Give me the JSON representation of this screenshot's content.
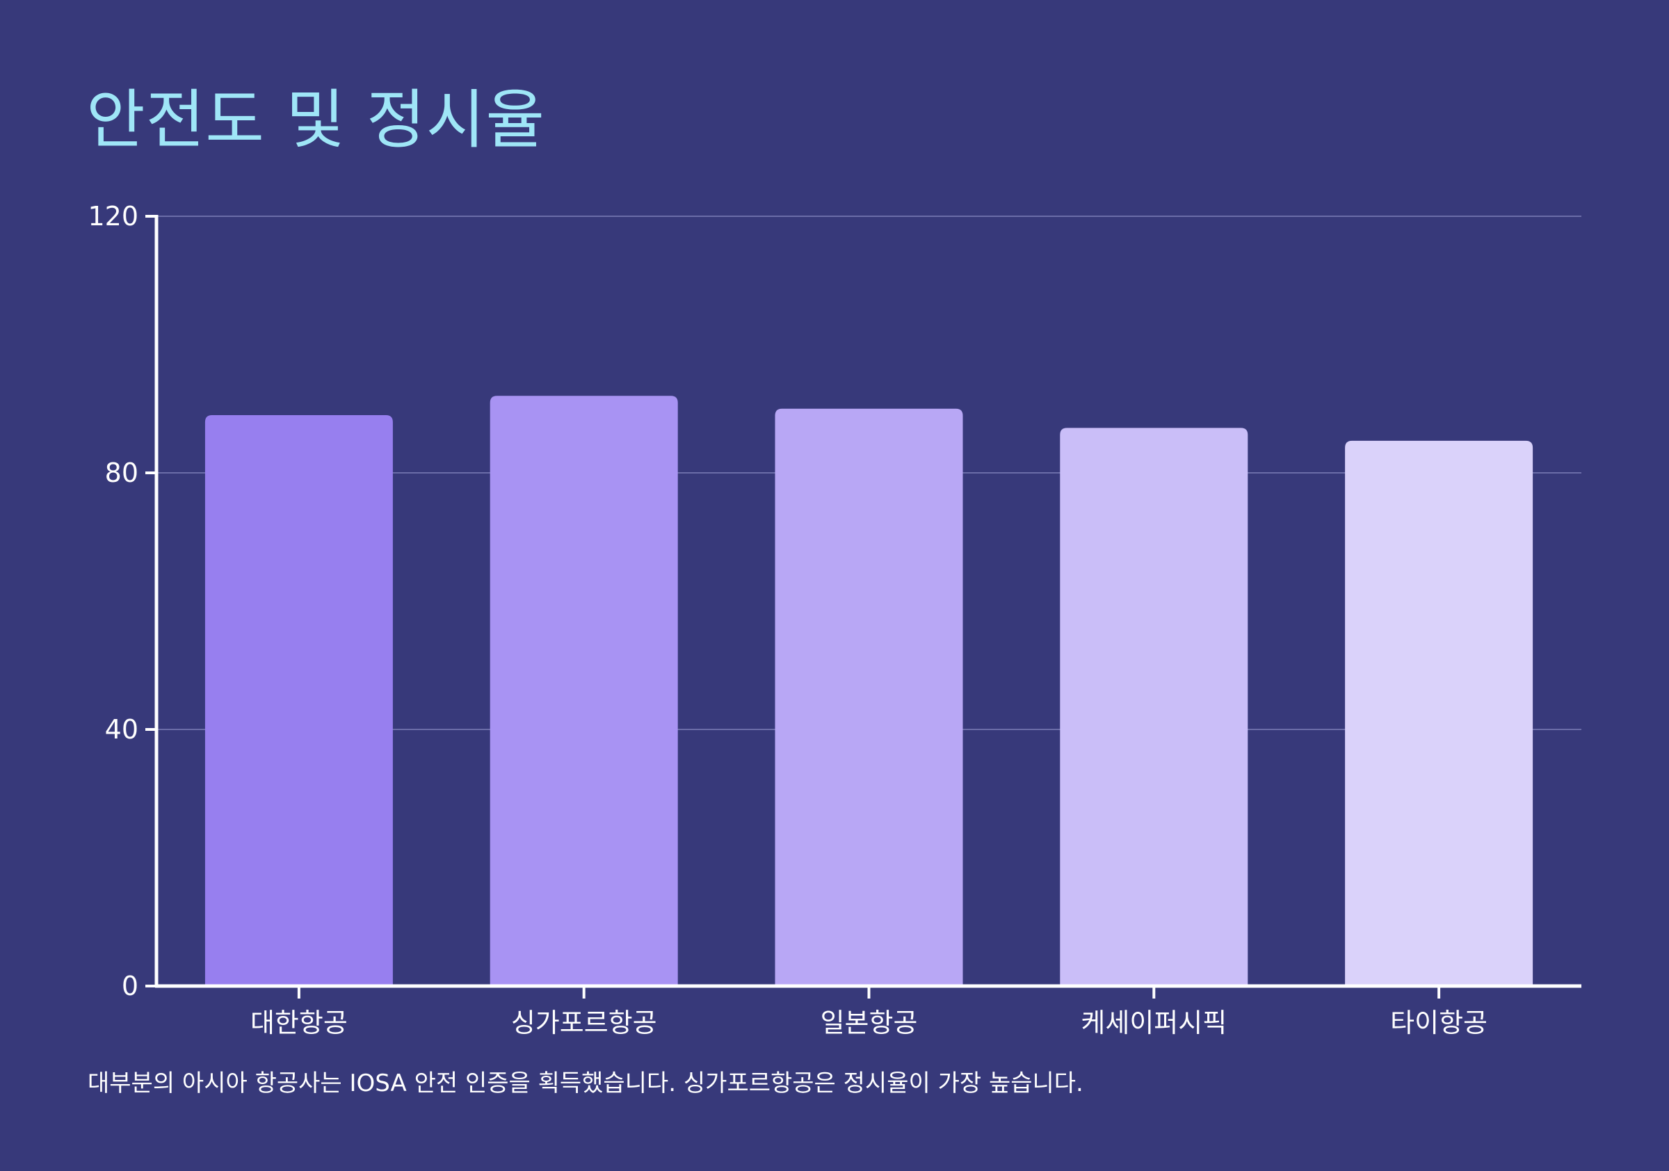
{
  "title": "안전도 및 정시율",
  "note": "대부분의 아시아 항공사는 IOSA 안전 인증을 획득했습니다. 싱가포르항공은 정시율이 가장 높습니다.",
  "chart_data": {
    "type": "bar",
    "title": "안전도 및 정시율",
    "xlabel": "",
    "ylabel": "",
    "categories": [
      "대한항공",
      "싱가포르항공",
      "일본항공",
      "케세이퍼시픽",
      "타이항공"
    ],
    "values": [
      89,
      92,
      90,
      87,
      85
    ],
    "ylim": [
      0,
      120
    ],
    "yticks": [
      "0",
      "40",
      "80",
      "120"
    ],
    "grid": true,
    "legend": "none",
    "colors": [
      "#977fef",
      "#a893f3",
      "#b8a7f5",
      "#cabef8",
      "#dad2fa"
    ],
    "background": "#37397a",
    "title_color": "#9fe6f7"
  }
}
